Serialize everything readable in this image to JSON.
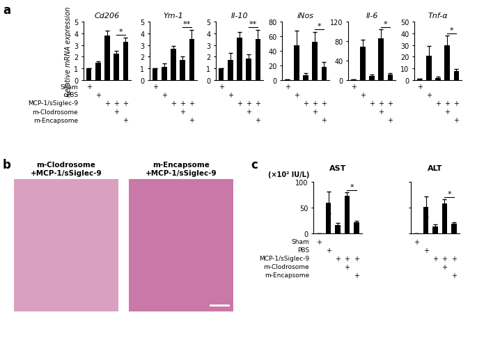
{
  "panel_labels": [
    "a",
    "b",
    "c"
  ],
  "conditions": [
    {
      "label": "Sham",
      "marks": [
        "+",
        null,
        null,
        null,
        null
      ]
    },
    {
      "label": "PBS",
      "marks": [
        null,
        "+",
        null,
        null,
        null
      ]
    },
    {
      "label": "MCP-1/sSiglec-9",
      "marks": [
        null,
        null,
        "+",
        "+",
        "+"
      ]
    },
    {
      "label": "m-Clodrosome",
      "marks": [
        null,
        null,
        null,
        "+",
        null
      ]
    },
    {
      "label": "m-Encapsome",
      "marks": [
        null,
        null,
        null,
        null,
        "+"
      ]
    }
  ],
  "chart_data": [
    {
      "type": "bar",
      "title": "Cd206",
      "ylabel": "Relative mRNA expression",
      "categories": [
        null,
        null,
        null,
        null,
        null
      ],
      "values": [
        1,
        1.5,
        3.8,
        2.25,
        3.3
      ],
      "errors": [
        0,
        0.1,
        0.45,
        0.25,
        0.35
      ],
      "color": "#000000",
      "ylim": [
        0,
        5
      ],
      "yticks": [
        0,
        1,
        2,
        3,
        4,
        5
      ],
      "significance": [
        {
          "between": [
            3,
            4
          ],
          "label": "*"
        }
      ]
    },
    {
      "type": "bar",
      "title": "Ym-1",
      "categories": [
        null,
        null,
        null,
        null,
        null
      ],
      "values": [
        1,
        1.15,
        2.7,
        1.7,
        3.5
      ],
      "errors": [
        0,
        0.3,
        0.2,
        0.35,
        0.8
      ],
      "color": "#000000",
      "ylim": [
        0,
        5
      ],
      "yticks": [
        0,
        1,
        2,
        3,
        4,
        5
      ],
      "significance": [
        {
          "between": [
            3,
            4
          ],
          "label": "**"
        }
      ]
    },
    {
      "type": "bar",
      "title": "Il-10",
      "categories": [
        null,
        null,
        null,
        null,
        null
      ],
      "values": [
        1,
        1.7,
        3.65,
        1.85,
        3.5
      ],
      "errors": [
        0,
        0.65,
        0.45,
        0.35,
        0.8
      ],
      "color": "#000000",
      "ylim": [
        0,
        5
      ],
      "yticks": [
        0,
        1,
        2,
        3,
        4,
        5
      ],
      "significance": [
        {
          "between": [
            3,
            4
          ],
          "label": "**"
        }
      ]
    },
    {
      "type": "bar",
      "title": "iNos",
      "categories": [
        null,
        null,
        null,
        null,
        null
      ],
      "values": [
        1,
        48,
        7,
        52,
        18
      ],
      "errors": [
        0,
        20,
        3,
        14,
        7
      ],
      "color": "#000000",
      "ylim": [
        0,
        80
      ],
      "yticks": [
        0,
        20,
        40,
        60,
        80
      ],
      "significance": [
        {
          "between": [
            3,
            4
          ],
          "label": "*"
        }
      ]
    },
    {
      "type": "bar",
      "title": "Il-6",
      "categories": [
        null,
        null,
        null,
        null,
        null
      ],
      "values": [
        1,
        68,
        8,
        86,
        11
      ],
      "errors": [
        0,
        15,
        3,
        18,
        3
      ],
      "color": "#000000",
      "ylim": [
        0,
        120
      ],
      "yticks": [
        0,
        40,
        80,
        120
      ],
      "significance": [
        {
          "between": [
            3,
            4
          ],
          "label": "*"
        }
      ]
    },
    {
      "type": "bar",
      "title": "Tnf-α",
      "categories": [
        null,
        null,
        null,
        null,
        null
      ],
      "values": [
        1,
        21,
        2,
        30,
        7.5
      ],
      "errors": [
        0,
        8,
        1,
        8,
        2
      ],
      "color": "#000000",
      "ylim": [
        0,
        50
      ],
      "yticks": [
        0,
        10,
        20,
        30,
        40,
        50
      ],
      "significance": [
        {
          "between": [
            3,
            4
          ],
          "label": "*"
        }
      ]
    },
    {
      "type": "bar",
      "title": "AST",
      "ylabel": "(×10² IU/L)",
      "categories": [
        null,
        null,
        null,
        null,
        null
      ],
      "values": [
        0,
        60,
        16,
        73,
        21
      ],
      "errors": [
        0,
        21,
        4,
        7,
        3
      ],
      "color": "#000000",
      "ylim": [
        0,
        100
      ],
      "yticks": [
        0,
        50,
        100
      ],
      "significance": [
        {
          "between": [
            3,
            4
          ],
          "label": "*"
        }
      ]
    },
    {
      "type": "bar",
      "title": "ALT",
      "categories": [
        null,
        null,
        null,
        null,
        null
      ],
      "values": [
        0,
        52,
        13,
        58,
        19
      ],
      "errors": [
        0,
        20,
        4,
        8,
        3
      ],
      "color": "#000000",
      "ylim": [
        0,
        100
      ],
      "yticks": [
        0,
        50,
        100
      ],
      "tick_labels": false,
      "significance": [
        {
          "between": [
            3,
            4
          ],
          "label": "*"
        }
      ]
    }
  ],
  "images": [
    {
      "title": [
        "m-Clodrosome",
        "+MCP-1/sSiglec-9"
      ]
    },
    {
      "title": [
        "m-Encapsome",
        "+MCP-1/sSiglec-9"
      ]
    }
  ]
}
